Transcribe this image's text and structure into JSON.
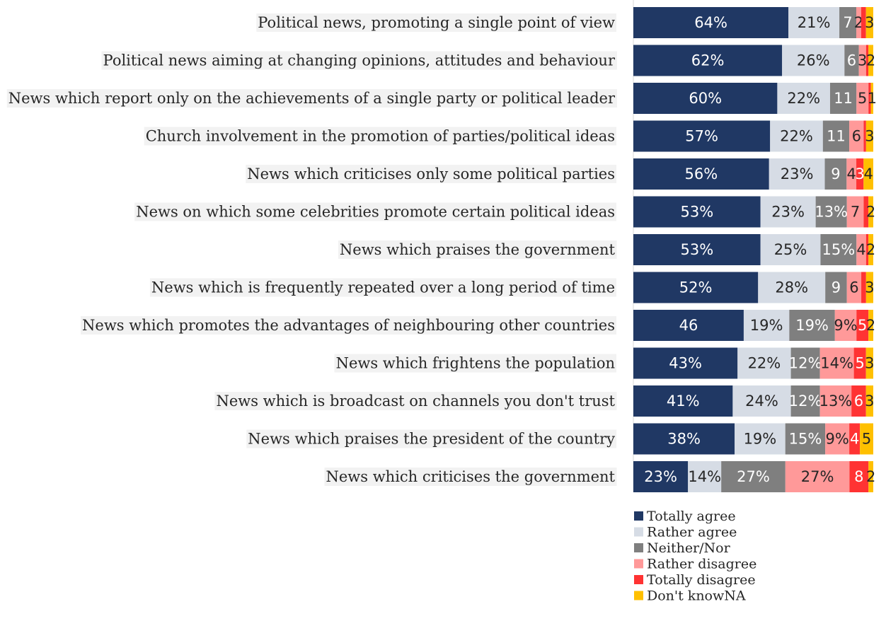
{
  "chart_data": {
    "type": "bar",
    "orientation": "horizontal",
    "stacked": true,
    "grid": false,
    "legend_position": "bottom",
    "categories": [
      "Political news, promoting a single point of view",
      "Political news aiming at changing opinions, attitudes and behaviour",
      "News which report only on the achievements of a single party or political leader",
      "Church involvement in the promotion of parties/political ideas",
      "News which criticises only some political parties",
      "News on which some celebrities promote certain political ideas",
      "News which praises the government",
      "News which is frequently repeated over a long period of time",
      "News which promotes the advantages of neighbouring other countries",
      "News which frightens the population",
      "News which is broadcast on channels you don't trust",
      "News which praises the president of the country",
      "News which criticises the government"
    ],
    "series": [
      {
        "name": "Totally agree",
        "color": "#203864",
        "values": [
          64,
          62,
          60,
          57,
          56,
          53,
          53,
          52,
          46,
          43,
          41,
          38,
          23
        ],
        "labels": [
          "64%",
          "62%",
          "60%",
          "57%",
          "56%",
          "53%",
          "53%",
          "52%",
          "46",
          "43%",
          "41%",
          "38%",
          "23%"
        ]
      },
      {
        "name": "Rather agree",
        "color": "#d6dce5",
        "values": [
          21,
          26,
          22,
          22,
          23,
          23,
          25,
          28,
          19,
          22,
          24,
          19,
          14
        ],
        "labels": [
          "21%",
          "26%",
          "22%",
          "22%",
          "23%",
          "23%",
          "25%",
          "28%",
          "19%",
          "22%",
          "24%",
          "19%",
          "14%"
        ]
      },
      {
        "name": "Neither/Nor",
        "color": "#7f7f7f",
        "values": [
          7,
          6,
          11,
          11,
          9,
          13,
          15,
          9,
          19,
          12,
          12,
          15,
          27
        ],
        "labels": [
          "7",
          "6",
          "11",
          "11",
          "9",
          "13%",
          "15%",
          "9",
          "19%",
          "12%",
          "12%",
          "15%",
          "27%"
        ]
      },
      {
        "name": "Rather disagree",
        "color": "#ff9999",
        "values": [
          2,
          3,
          5,
          6,
          4,
          7,
          4,
          6,
          9,
          14,
          13,
          9,
          27
        ],
        "labels": [
          "2",
          "3",
          "5",
          "6",
          "4",
          "7",
          "4",
          "6",
          "9%",
          "14%",
          "13%",
          "9%",
          "27%"
        ]
      },
      {
        "name": "Totally disagree",
        "color": "#ff3333",
        "values": [
          2,
          1,
          1,
          1,
          3,
          2,
          1,
          2,
          5,
          5,
          6,
          4,
          8
        ],
        "labels": [
          "",
          "",
          "",
          "",
          "3",
          "",
          "",
          "",
          "5",
          "5",
          "6",
          "4",
          "8"
        ]
      },
      {
        "name": "Don't knowNA",
        "color": "#ffc000",
        "values": [
          3,
          2,
          1,
          3,
          4,
          2,
          2,
          3,
          2,
          3,
          3,
          5,
          2
        ],
        "labels": [
          "3",
          "2",
          "1",
          "3",
          "4",
          "2",
          "2",
          "3",
          "2",
          "3",
          "3",
          "5",
          "2"
        ]
      }
    ]
  }
}
